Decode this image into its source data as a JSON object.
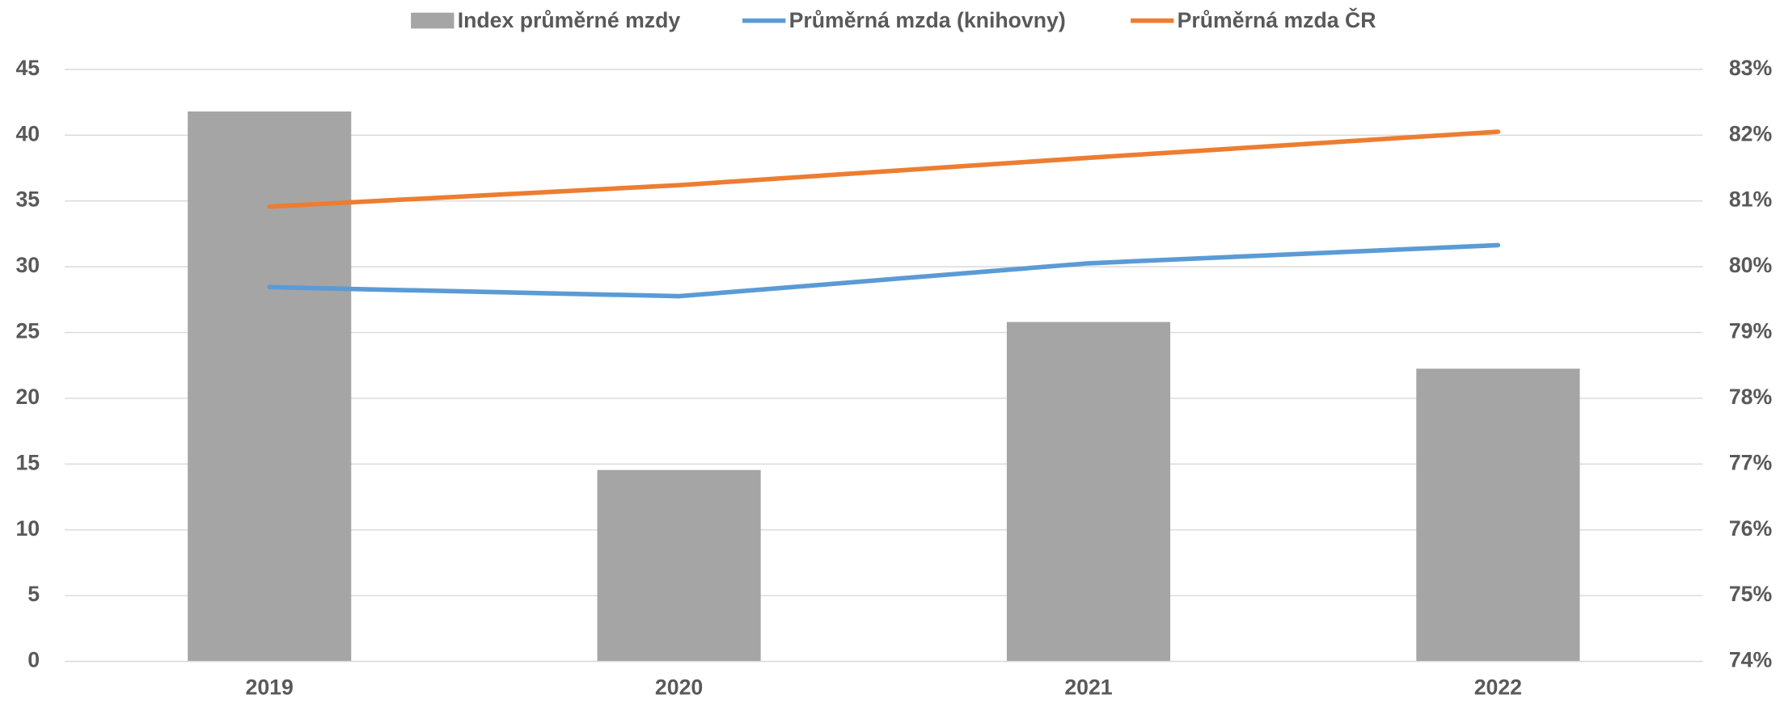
{
  "chart_data": {
    "type": "bar-line",
    "categories": [
      "2019",
      "2020",
      "2021",
      "2022"
    ],
    "series": [
      {
        "name": "Index průměrné mzdy",
        "type": "bar",
        "axis": "y2",
        "color": "#a5a5a5",
        "values": [
          82.36,
          76.91,
          79.16,
          78.45
        ]
      },
      {
        "name": "Průměrná mzda (knihovny)",
        "type": "line",
        "color": "#5b9bd5",
        "values": [
          28.45,
          27.76,
          30.26,
          31.64
        ]
      },
      {
        "name": "Průměrná mzda ČR",
        "type": "line",
        "color": "#ed7d31",
        "values": [
          34.57,
          36.2,
          38.28,
          40.26
        ]
      }
    ],
    "ylim": [
      0,
      45
    ],
    "yticks": [
      0,
      5,
      10,
      15,
      20,
      25,
      30,
      35,
      40,
      45
    ],
    "y2lim": [
      74,
      83
    ],
    "y2ticks": [
      {
        "value": 74,
        "label": "74%"
      },
      {
        "value": 75,
        "label": "75%"
      },
      {
        "value": 76,
        "label": "76%"
      },
      {
        "value": 77,
        "label": "77%"
      },
      {
        "value": 78,
        "label": "78%"
      },
      {
        "value": 79,
        "label": "79%"
      },
      {
        "value": 80,
        "label": "80%"
      },
      {
        "value": 81,
        "label": "81%"
      },
      {
        "value": 82,
        "label": "82%"
      },
      {
        "value": 83,
        "label": "83%"
      }
    ],
    "grid": true,
    "legend": "top"
  }
}
